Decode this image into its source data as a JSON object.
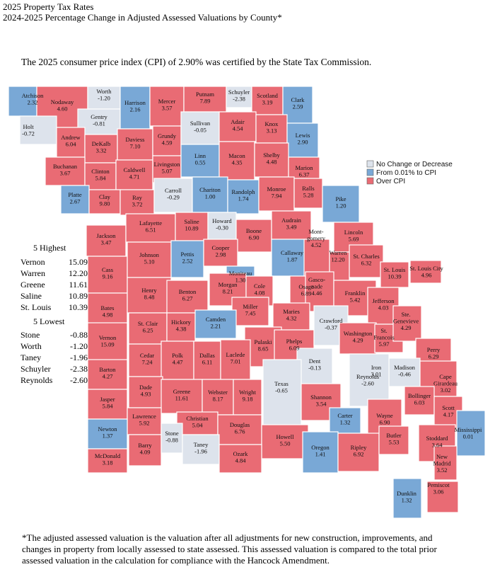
{
  "title": "2025 Property Tax Rates",
  "subtitle": "2024-2025 Percentage Change in Adjusted Assessed Valuations by County*",
  "cpi_note": "The 2025 consumer price index (CPI) of 2.90% was certified by the State Tax Commission.",
  "footnote": "*The adjusted assessed valuation is the valuation after all adjustments for new construction, improvements, and changes in property from locally assessed to state assessed. This assessed valuation is compared to the total prior assessed valuation in the calculation for compliance with the Hancock Amendment.",
  "colors": {
    "decrease": "#dde3ec",
    "to_cpi": "#79a8d6",
    "over_cpi": "#e96b74",
    "border": "#ffffff"
  },
  "legend": [
    {
      "key": "decrease",
      "label": "No Change or Decrease"
    },
    {
      "key": "to_cpi",
      "label": "From 0.01% to CPI"
    },
    {
      "key": "over_cpi",
      "label": "Over CPI"
    }
  ],
  "highest": {
    "heading": "5 Highest",
    "rows": [
      {
        "name": "Vernon",
        "value": "15.09"
      },
      {
        "name": "Warren",
        "value": "12.20"
      },
      {
        "name": "Greene",
        "value": "11.61"
      },
      {
        "name": "Saline",
        "value": "10.89"
      },
      {
        "name": "St. Louis",
        "value": "10.39"
      }
    ]
  },
  "lowest": {
    "heading": "5 Lowest",
    "rows": [
      {
        "name": "Stone",
        "value": "-0.88"
      },
      {
        "name": "Worth",
        "value": "-1.20"
      },
      {
        "name": "Taney",
        "value": "-1.96"
      },
      {
        "name": "Schuyler",
        "value": "-2.38"
      },
      {
        "name": "Reynolds",
        "value": "-2.60"
      }
    ]
  },
  "counties": [
    {
      "name": "Atchison",
      "value": "2.32",
      "cat": "to_cpi"
    },
    {
      "name": "Nodaway",
      "value": "4.60",
      "cat": "over_cpi"
    },
    {
      "name": "Worth",
      "value": "-1.20",
      "cat": "decrease"
    },
    {
      "name": "Gentry",
      "value": "-0.81",
      "cat": "decrease"
    },
    {
      "name": "Harrison",
      "value": "2.16",
      "cat": "to_cpi"
    },
    {
      "name": "Mercer",
      "value": "3.57",
      "cat": "over_cpi"
    },
    {
      "name": "Putnam",
      "value": "7.89",
      "cat": "over_cpi"
    },
    {
      "name": "Schuyler",
      "value": "-2.38",
      "cat": "decrease"
    },
    {
      "name": "Scotland",
      "value": "3.19",
      "cat": "over_cpi"
    },
    {
      "name": "Clark",
      "value": "2.59",
      "cat": "to_cpi"
    },
    {
      "name": "Holt",
      "value": "-0.72",
      "cat": "decrease"
    },
    {
      "name": "Andrew",
      "value": "6.04",
      "cat": "over_cpi"
    },
    {
      "name": "DeKalb",
      "value": "3.32",
      "cat": "over_cpi"
    },
    {
      "name": "Daviess",
      "value": "7.10",
      "cat": "over_cpi"
    },
    {
      "name": "Grundy",
      "value": "4.59",
      "cat": "over_cpi"
    },
    {
      "name": "Sullivan",
      "value": "-0.05",
      "cat": "decrease"
    },
    {
      "name": "Adair",
      "value": "4.54",
      "cat": "over_cpi"
    },
    {
      "name": "Knox",
      "value": "3.13",
      "cat": "over_cpi"
    },
    {
      "name": "Lewis",
      "value": "2.90",
      "cat": "to_cpi"
    },
    {
      "name": "Buchanan",
      "value": "3.67",
      "cat": "over_cpi"
    },
    {
      "name": "Clinton",
      "value": "5.84",
      "cat": "over_cpi"
    },
    {
      "name": "Caldwell",
      "value": "4.71",
      "cat": "over_cpi"
    },
    {
      "name": "Livingston",
      "value": "5.07",
      "cat": "over_cpi"
    },
    {
      "name": "Linn",
      "value": "0.55",
      "cat": "to_cpi"
    },
    {
      "name": "Macon",
      "value": "4.35",
      "cat": "over_cpi"
    },
    {
      "name": "Shelby",
      "value": "4.48",
      "cat": "over_cpi"
    },
    {
      "name": "Marion",
      "value": "6.37",
      "cat": "over_cpi"
    },
    {
      "name": "Platte",
      "value": "2.67",
      "cat": "to_cpi"
    },
    {
      "name": "Clay",
      "value": "9.80",
      "cat": "over_cpi"
    },
    {
      "name": "Ray",
      "value": "3.72",
      "cat": "over_cpi"
    },
    {
      "name": "Carroll",
      "value": "-0.29",
      "cat": "decrease"
    },
    {
      "name": "Chariton",
      "value": "1.00",
      "cat": "to_cpi"
    },
    {
      "name": "Randolph",
      "value": "1.74",
      "cat": "to_cpi"
    },
    {
      "name": "Monroe",
      "value": "7.94",
      "cat": "over_cpi"
    },
    {
      "name": "Ralls",
      "value": "5.28",
      "cat": "over_cpi"
    },
    {
      "name": "Pike",
      "value": "1.20",
      "cat": "to_cpi"
    },
    {
      "name": "Jackson",
      "value": "3.47",
      "cat": "over_cpi"
    },
    {
      "name": "Lafayette",
      "value": "6.51",
      "cat": "over_cpi"
    },
    {
      "name": "Saline",
      "value": "10.89",
      "cat": "over_cpi"
    },
    {
      "name": "Howard",
      "value": "-0.30",
      "cat": "decrease"
    },
    {
      "name": "Boone",
      "value": "6.90",
      "cat": "over_cpi"
    },
    {
      "name": "Audrain",
      "value": "3.49",
      "cat": "over_cpi"
    },
    {
      "name": "Lincoln",
      "value": "5.69",
      "cat": "over_cpi"
    },
    {
      "name": "Cass",
      "value": "9.16",
      "cat": "over_cpi"
    },
    {
      "name": "Johnson",
      "value": "5.10",
      "cat": "over_cpi"
    },
    {
      "name": "Pettis",
      "value": "2.52",
      "cat": "to_cpi"
    },
    {
      "name": "Cooper",
      "value": "2.98",
      "cat": "over_cpi"
    },
    {
      "name": "Moniteau",
      "value": "1.30",
      "cat": "to_cpi"
    },
    {
      "name": "Callaway",
      "value": "1.87",
      "cat": "to_cpi"
    },
    {
      "name": "Montgomery",
      "value": "4.52",
      "cat": "over_cpi"
    },
    {
      "name": "Warren",
      "value": "12.20",
      "cat": "over_cpi"
    },
    {
      "name": "St. Charles",
      "value": "6.32",
      "cat": "over_cpi"
    },
    {
      "name": "St. Louis",
      "value": "10.39",
      "cat": "over_cpi"
    },
    {
      "name": "St. Louis City",
      "value": "4.96",
      "cat": "over_cpi"
    },
    {
      "name": "Bates",
      "value": "4.98",
      "cat": "over_cpi"
    },
    {
      "name": "Henry",
      "value": "8.48",
      "cat": "over_cpi"
    },
    {
      "name": "Benton",
      "value": "6.27",
      "cat": "over_cpi"
    },
    {
      "name": "Morgan",
      "value": "8.21",
      "cat": "over_cpi"
    },
    {
      "name": "Cole",
      "value": "4.08",
      "cat": "over_cpi"
    },
    {
      "name": "Osage",
      "value": "6.89",
      "cat": "over_cpi"
    },
    {
      "name": "Gasconade",
      "value": "4.46",
      "cat": "over_cpi"
    },
    {
      "name": "Franklin",
      "value": "5.42",
      "cat": "over_cpi"
    },
    {
      "name": "Jefferson",
      "value": "4.03",
      "cat": "over_cpi"
    },
    {
      "name": "Miller",
      "value": "7.45",
      "cat": "over_cpi"
    },
    {
      "name": "Maries",
      "value": "4.32",
      "cat": "over_cpi"
    },
    {
      "name": "Vernon",
      "value": "15.09",
      "cat": "over_cpi"
    },
    {
      "name": "St. Clair",
      "value": "6.25",
      "cat": "over_cpi"
    },
    {
      "name": "Hickory",
      "value": "4.38",
      "cat": "over_cpi"
    },
    {
      "name": "Camden",
      "value": "2.21",
      "cat": "to_cpi"
    },
    {
      "name": "Pulaski",
      "value": "8.65",
      "cat": "over_cpi"
    },
    {
      "name": "Phelps",
      "value": "6.09",
      "cat": "over_cpi"
    },
    {
      "name": "Crawford",
      "value": "-0.37",
      "cat": "decrease"
    },
    {
      "name": "Washington",
      "value": "4.29",
      "cat": "over_cpi"
    },
    {
      "name": "St. Francois",
      "value": "5.97",
      "cat": "over_cpi"
    },
    {
      "name": "Ste. Genevieve",
      "value": "4.29",
      "cat": "over_cpi"
    },
    {
      "name": "Perry",
      "value": "6.29",
      "cat": "over_cpi"
    },
    {
      "name": "Barton",
      "value": "4.27",
      "cat": "over_cpi"
    },
    {
      "name": "Cedar",
      "value": "7.24",
      "cat": "over_cpi"
    },
    {
      "name": "Polk",
      "value": "4.47",
      "cat": "over_cpi"
    },
    {
      "name": "Dallas",
      "value": "6.11",
      "cat": "over_cpi"
    },
    {
      "name": "Laclede",
      "value": "7.01",
      "cat": "over_cpi"
    },
    {
      "name": "Dent",
      "value": "-0.13",
      "cat": "decrease"
    },
    {
      "name": "Iron",
      "value": "3.01",
      "cat": "over_cpi"
    },
    {
      "name": "Madison",
      "value": "-0.46",
      "cat": "decrease"
    },
    {
      "name": "Cape Girardeau",
      "value": "3.02",
      "cat": "over_cpi"
    },
    {
      "name": "Jasper",
      "value": "5.84",
      "cat": "over_cpi"
    },
    {
      "name": "Dade",
      "value": "4.93",
      "cat": "over_cpi"
    },
    {
      "name": "Greene",
      "value": "11.61",
      "cat": "over_cpi"
    },
    {
      "name": "Webster",
      "value": "8.17",
      "cat": "over_cpi"
    },
    {
      "name": "Wright",
      "value": "9.18",
      "cat": "over_cpi"
    },
    {
      "name": "Texas",
      "value": "-0.65",
      "cat": "decrease"
    },
    {
      "name": "Shannon",
      "value": "3.54",
      "cat": "over_cpi"
    },
    {
      "name": "Reynolds",
      "value": "-2.60",
      "cat": "decrease"
    },
    {
      "name": "Bollinger",
      "value": "6.03",
      "cat": "over_cpi"
    },
    {
      "name": "Scott",
      "value": "4.17",
      "cat": "over_cpi"
    },
    {
      "name": "Lawrence",
      "value": "5.92",
      "cat": "over_cpi"
    },
    {
      "name": "Christian",
      "value": "5.04",
      "cat": "over_cpi"
    },
    {
      "name": "Douglas",
      "value": "6.76",
      "cat": "over_cpi"
    },
    {
      "name": "Howell",
      "value": "5.50",
      "cat": "over_cpi"
    },
    {
      "name": "Carter",
      "value": "1.32",
      "cat": "to_cpi"
    },
    {
      "name": "Wayne",
      "value": "6.90",
      "cat": "over_cpi"
    },
    {
      "name": "Stoddard",
      "value": "3.64",
      "cat": "over_cpi"
    },
    {
      "name": "Mississippi",
      "value": "0.01",
      "cat": "to_cpi"
    },
    {
      "name": "Newton",
      "value": "1.37",
      "cat": "to_cpi"
    },
    {
      "name": "Barry",
      "value": "4.09",
      "cat": "over_cpi"
    },
    {
      "name": "Stone",
      "value": "-0.88",
      "cat": "decrease"
    },
    {
      "name": "Taney",
      "value": "-1.96",
      "cat": "decrease"
    },
    {
      "name": "Ozark",
      "value": "4.84",
      "cat": "over_cpi"
    },
    {
      "name": "Oregon",
      "value": "1.41",
      "cat": "to_cpi"
    },
    {
      "name": "Ripley",
      "value": "6.92",
      "cat": "over_cpi"
    },
    {
      "name": "Butler",
      "value": "5.53",
      "cat": "over_cpi"
    },
    {
      "name": "New Madrid",
      "value": "3.52",
      "cat": "over_cpi"
    },
    {
      "name": "McDonald",
      "value": "3.18",
      "cat": "over_cpi"
    },
    {
      "name": "Pemiscot",
      "value": "3.06",
      "cat": "over_cpi"
    },
    {
      "name": "Dunklin",
      "value": "1.32",
      "cat": "to_cpi"
    }
  ]
}
